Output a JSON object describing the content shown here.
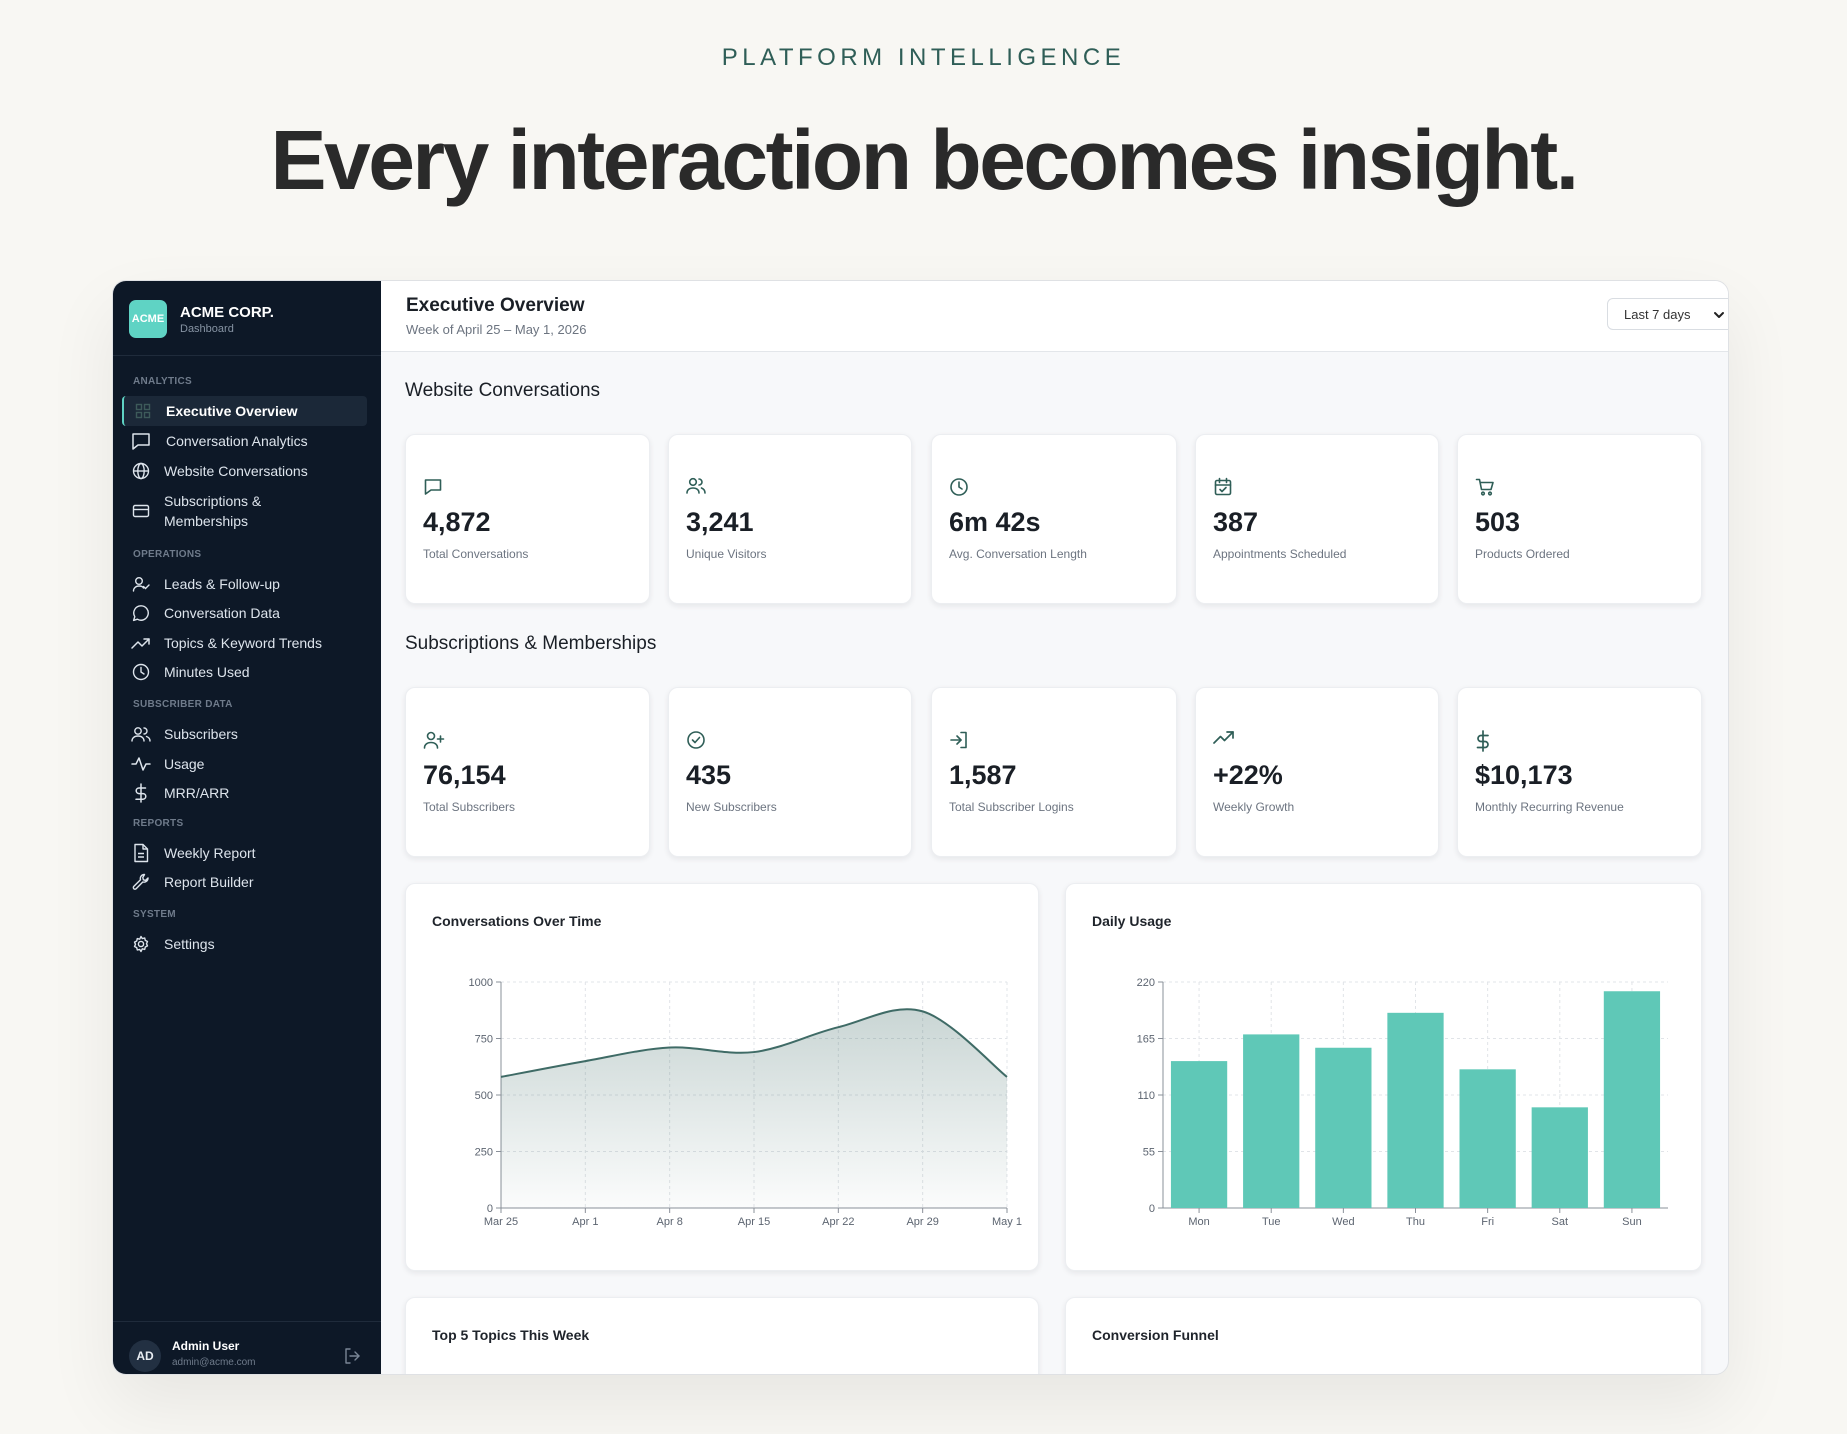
{
  "hero": {
    "eyebrow": "PLATFORM INTELLIGENCE",
    "headline": "Every interaction becomes insight."
  },
  "sidebar": {
    "logo_text": "ACME",
    "brand_name": "ACME CORP.",
    "brand_sub": "Dashboard",
    "sections": {
      "analytics": "ANALYTICS",
      "operations": "OPERATIONS",
      "subscriber": "SUBSCRIBER DATA",
      "reports": "REPORTS",
      "system": "SYSTEM"
    },
    "items": [
      {
        "label": "Executive Overview",
        "icon": "grid-icon",
        "active": true
      },
      {
        "label": "Conversation Analytics",
        "icon": "chat-square-icon"
      },
      {
        "label": "Website Conversations",
        "icon": "globe-icon"
      },
      {
        "label": "Subscriptions & Memberships",
        "icon": "card-icon"
      },
      {
        "label": "Leads & Follow-up",
        "icon": "user-check-icon"
      },
      {
        "label": "Conversation Data",
        "icon": "chat-round-icon"
      },
      {
        "label": "Topics & Keyword Trends",
        "icon": "trend-icon"
      },
      {
        "label": "Minutes Used",
        "icon": "clock-icon"
      },
      {
        "label": "Subscribers",
        "icon": "users-icon"
      },
      {
        "label": "Usage",
        "icon": "activity-icon"
      },
      {
        "label": "MRR/ARR",
        "icon": "dollar-icon"
      },
      {
        "label": "Weekly Report",
        "icon": "document-icon"
      },
      {
        "label": "Report Builder",
        "icon": "wrench-icon"
      },
      {
        "label": "Settings",
        "icon": "gear-icon"
      }
    ],
    "user": {
      "initials": "AD",
      "name": "Admin User",
      "email": "admin@acme.com"
    }
  },
  "header": {
    "title": "Executive Overview",
    "subtitle": "Week of April 25 – May 1, 2026",
    "range_selected": "Last 7 days"
  },
  "website_conversations": {
    "title": "Website Conversations",
    "kpis": [
      {
        "value": "4,872",
        "label": "Total Conversations",
        "icon": "chat-square-icon"
      },
      {
        "value": "3,241",
        "label": "Unique Visitors",
        "icon": "users-icon"
      },
      {
        "value": "6m 42s",
        "label": "Avg. Conversation Length",
        "icon": "clock-icon"
      },
      {
        "value": "387",
        "label": "Appointments Scheduled",
        "icon": "calendar-check-icon"
      },
      {
        "value": "503",
        "label": "Products Ordered",
        "icon": "cart-icon"
      }
    ]
  },
  "subscriptions": {
    "title": "Subscriptions & Memberships",
    "kpis": [
      {
        "value": "76,154",
        "label": "Total Subscribers",
        "icon": "user-plus-icon"
      },
      {
        "value": "435",
        "label": "New Subscribers",
        "icon": "check-circle-icon"
      },
      {
        "value": "1,587",
        "label": "Total Subscriber Logins",
        "icon": "login-icon"
      },
      {
        "value": "+22%",
        "label": "Weekly Growth",
        "icon": "trend-icon"
      },
      {
        "value": "$10,173",
        "label": "Monthly Recurring Revenue",
        "icon": "dollar-icon"
      }
    ]
  },
  "bottom_cards": {
    "topics_title": "Top 5 Topics This Week",
    "funnel_title": "Conversion Funnel"
  },
  "colors": {
    "sidebar_bg": "#0d1827",
    "accent": "#5fd3c4",
    "line": "#3f6b66",
    "bar": "#5fc8b7"
  },
  "chart_data": [
    {
      "type": "area",
      "title": "Conversations Over Time",
      "categories": [
        "Mar 25",
        "Apr 1",
        "Apr 8",
        "Apr 15",
        "Apr 22",
        "Apr 29",
        "May 1"
      ],
      "values": [
        580,
        650,
        710,
        690,
        800,
        870,
        580
      ],
      "yticks": [
        0,
        250,
        500,
        750,
        1000
      ],
      "ylim": [
        0,
        1000
      ],
      "grid": true,
      "legend": "none"
    },
    {
      "type": "bar",
      "title": "Daily Usage",
      "categories": [
        "Mon",
        "Tue",
        "Wed",
        "Thu",
        "Fri",
        "Sat",
        "Sun"
      ],
      "values": [
        143,
        169,
        156,
        190,
        135,
        98,
        211
      ],
      "yticks": [
        0,
        55,
        110,
        165,
        220
      ],
      "ylim": [
        0,
        220
      ],
      "grid": true,
      "legend": "none"
    }
  ]
}
